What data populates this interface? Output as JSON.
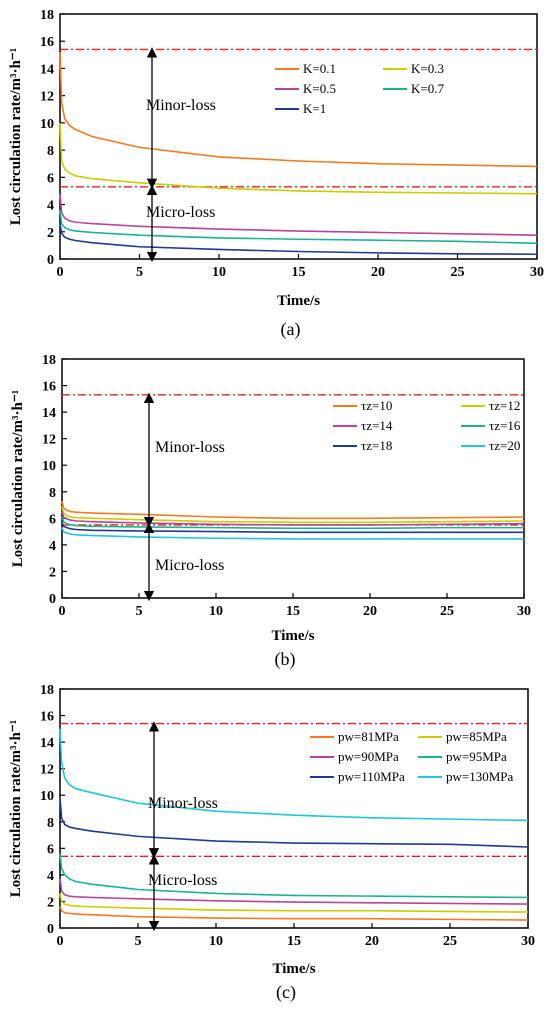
{
  "chart_data": [
    {
      "type": "line",
      "caption": "(a)",
      "xlabel": "Time/s",
      "ylabel": "Lost circulation rate/m³·h⁻¹",
      "xlim": [
        0,
        30
      ],
      "ylim": [
        0,
        18
      ],
      "xticks": [
        "0",
        "5",
        "10",
        "15",
        "20",
        "25",
        "30"
      ],
      "yticks": [
        "0",
        "2",
        "4",
        "6",
        "8",
        "10",
        "12",
        "14",
        "16",
        "18"
      ],
      "grid": false,
      "legend_position": "top-right",
      "thresholds": [
        15.4,
        5.3
      ],
      "zone_labels": [
        "Minor-loss",
        "Micro-loss"
      ],
      "series": [
        {
          "name": "K=0.1",
          "color": "#f47a20",
          "x": [
            0,
            0.1,
            0.3,
            0.6,
            1,
            2,
            5,
            10,
            15,
            20,
            25,
            30
          ],
          "y": [
            15.2,
            11.5,
            10.3,
            9.8,
            9.5,
            9.0,
            8.2,
            7.5,
            7.2,
            7.0,
            6.9,
            6.8
          ]
        },
        {
          "name": "K=0.3",
          "color": "#cccc00",
          "x": [
            0,
            0.1,
            0.3,
            0.6,
            1,
            2,
            5,
            10,
            15,
            20,
            25,
            30
          ],
          "y": [
            10.0,
            7.2,
            6.6,
            6.3,
            6.1,
            5.9,
            5.6,
            5.2,
            5.0,
            4.9,
            4.85,
            4.8
          ]
        },
        {
          "name": "K=0.5",
          "color": "#b7469b",
          "x": [
            0,
            0.1,
            0.3,
            0.6,
            1,
            2,
            5,
            10,
            15,
            20,
            25,
            30
          ],
          "y": [
            4.8,
            3.4,
            3.0,
            2.8,
            2.7,
            2.6,
            2.4,
            2.2,
            2.05,
            1.95,
            1.85,
            1.75
          ]
        },
        {
          "name": "K=0.7",
          "color": "#1db392",
          "x": [
            0,
            0.1,
            0.3,
            0.6,
            1,
            2,
            5,
            10,
            15,
            20,
            25,
            30
          ],
          "y": [
            3.6,
            2.6,
            2.3,
            2.15,
            2.05,
            1.95,
            1.75,
            1.55,
            1.45,
            1.38,
            1.3,
            1.15
          ]
        },
        {
          "name": "K=1",
          "color": "#1f3a93",
          "x": [
            0,
            0.1,
            0.3,
            0.6,
            1,
            2,
            5,
            10,
            15,
            20,
            25,
            30
          ],
          "y": [
            2.6,
            1.9,
            1.6,
            1.45,
            1.35,
            1.2,
            0.9,
            0.7,
            0.55,
            0.45,
            0.38,
            0.35
          ]
        }
      ]
    },
    {
      "type": "line",
      "caption": "(b)",
      "xlabel": "Time/s",
      "ylabel": "Lost circulation rate/m³·h⁻¹",
      "xlim": [
        0,
        30
      ],
      "ylim": [
        0,
        18
      ],
      "xticks": [
        "0",
        "5",
        "10",
        "15",
        "20",
        "25",
        "30"
      ],
      "yticks": [
        "0",
        "2",
        "4",
        "6",
        "8",
        "10",
        "12",
        "14",
        "16",
        "18"
      ],
      "grid": false,
      "legend_position": "top-right",
      "thresholds": [
        15.3,
        5.5
      ],
      "zone_labels": [
        "Minor-loss",
        "Micro-loss"
      ],
      "series": [
        {
          "name": "τz=10",
          "color": "#f47a20",
          "x": [
            0,
            0.1,
            0.3,
            0.6,
            1,
            2,
            5,
            10,
            15,
            20,
            25,
            30
          ],
          "y": [
            7.3,
            6.8,
            6.6,
            6.5,
            6.45,
            6.4,
            6.3,
            6.1,
            6.0,
            6.0,
            6.05,
            6.1
          ]
        },
        {
          "name": "τz=12",
          "color": "#cccc00",
          "x": [
            0,
            0.1,
            0.3,
            0.6,
            1,
            2,
            5,
            10,
            15,
            20,
            25,
            30
          ],
          "y": [
            6.9,
            6.4,
            6.2,
            6.1,
            6.05,
            6.0,
            5.9,
            5.75,
            5.7,
            5.7,
            5.75,
            5.8
          ]
        },
        {
          "name": "τz=14",
          "color": "#b7469b",
          "x": [
            0,
            0.1,
            0.3,
            0.6,
            1,
            2,
            5,
            10,
            15,
            20,
            25,
            30
          ],
          "y": [
            6.5,
            6.1,
            5.95,
            5.85,
            5.8,
            5.75,
            5.65,
            5.55,
            5.5,
            5.5,
            5.55,
            5.6
          ]
        },
        {
          "name": "τz=16",
          "color": "#1db392",
          "x": [
            0,
            0.1,
            0.3,
            0.6,
            1,
            2,
            5,
            10,
            15,
            20,
            25,
            30
          ],
          "y": [
            6.1,
            5.75,
            5.6,
            5.5,
            5.45,
            5.4,
            5.35,
            5.3,
            5.25,
            5.25,
            5.3,
            5.3
          ]
        },
        {
          "name": "τz=18",
          "color": "#1f3a93",
          "x": [
            0,
            0.1,
            0.3,
            0.6,
            1,
            2,
            5,
            10,
            15,
            20,
            25,
            30
          ],
          "y": [
            5.7,
            5.4,
            5.3,
            5.2,
            5.15,
            5.1,
            5.05,
            5.0,
            4.95,
            4.95,
            4.95,
            4.95
          ]
        },
        {
          "name": "τz=20",
          "color": "#22c5e0",
          "x": [
            0,
            0.1,
            0.3,
            0.6,
            1,
            2,
            5,
            10,
            15,
            20,
            25,
            30
          ],
          "y": [
            5.3,
            5.0,
            4.9,
            4.8,
            4.75,
            4.7,
            4.6,
            4.5,
            4.45,
            4.45,
            4.45,
            4.45
          ]
        }
      ]
    },
    {
      "type": "line",
      "caption": "(c)",
      "xlabel": "Time/s",
      "ylabel": "Lost circulation rate/m³·h⁻¹",
      "xlim": [
        0,
        30
      ],
      "ylim": [
        0,
        18
      ],
      "xticks": [
        "0",
        "5",
        "10",
        "15",
        "20",
        "25",
        "30"
      ],
      "yticks": [
        "0",
        "2",
        "4",
        "6",
        "8",
        "10",
        "12",
        "14",
        "16",
        "18"
      ],
      "grid": false,
      "legend_position": "top-right",
      "thresholds": [
        15.4,
        5.4
      ],
      "zone_labels": [
        "Minor-loss",
        "Micro-loss"
      ],
      "series": [
        {
          "name": "pw=81MPa",
          "color": "#f47a20",
          "x": [
            0,
            0.1,
            0.3,
            0.6,
            1,
            2,
            5,
            10,
            15,
            20,
            25,
            30
          ],
          "y": [
            1.6,
            1.3,
            1.15,
            1.1,
            1.05,
            1.0,
            0.85,
            0.75,
            0.7,
            0.7,
            0.65,
            0.6
          ]
        },
        {
          "name": "pw=85MPa",
          "color": "#cccc00",
          "x": [
            0,
            0.1,
            0.3,
            0.6,
            1,
            2,
            5,
            10,
            15,
            20,
            25,
            30
          ],
          "y": [
            2.6,
            2.0,
            1.8,
            1.7,
            1.65,
            1.6,
            1.5,
            1.35,
            1.3,
            1.3,
            1.25,
            1.2
          ]
        },
        {
          "name": "pw=90MPa",
          "color": "#b7469b",
          "x": [
            0,
            0.1,
            0.3,
            0.6,
            1,
            2,
            5,
            10,
            15,
            20,
            25,
            30
          ],
          "y": [
            3.7,
            2.8,
            2.5,
            2.4,
            2.35,
            2.3,
            2.2,
            2.05,
            1.95,
            1.9,
            1.85,
            1.8
          ]
        },
        {
          "name": "pw=95MPa",
          "color": "#1db392",
          "x": [
            0,
            0.1,
            0.3,
            0.6,
            1,
            2,
            5,
            10,
            15,
            20,
            25,
            30
          ],
          "y": [
            5.6,
            4.5,
            4.0,
            3.7,
            3.5,
            3.3,
            2.9,
            2.6,
            2.45,
            2.4,
            2.35,
            2.3
          ]
        },
        {
          "name": "pw=110MPa",
          "color": "#1f3a93",
          "x": [
            0,
            0.1,
            0.3,
            0.6,
            1,
            2,
            5,
            10,
            15,
            20,
            25,
            30
          ],
          "y": [
            9.8,
            8.3,
            7.8,
            7.6,
            7.5,
            7.3,
            6.9,
            6.55,
            6.4,
            6.35,
            6.3,
            6.1
          ]
        },
        {
          "name": "pw=130MPa",
          "color": "#22c5e0",
          "x": [
            0,
            0.1,
            0.3,
            0.6,
            1,
            2,
            5,
            10,
            15,
            20,
            25,
            30
          ],
          "y": [
            15.0,
            12.5,
            11.3,
            10.8,
            10.5,
            10.2,
            9.4,
            8.8,
            8.5,
            8.3,
            8.2,
            8.1
          ]
        }
      ]
    }
  ]
}
